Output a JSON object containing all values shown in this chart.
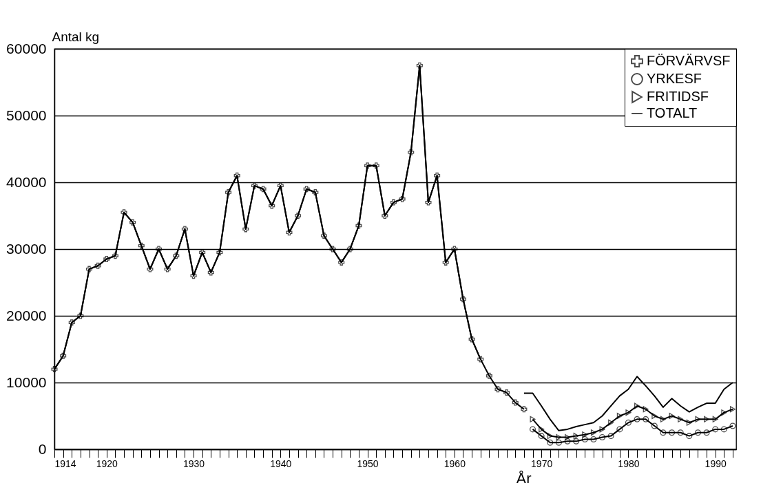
{
  "chart_data": {
    "type": "line",
    "xlabel": "År",
    "ylabel": "Antal kg",
    "x": [
      1914,
      1915,
      1916,
      1917,
      1918,
      1919,
      1920,
      1921,
      1922,
      1923,
      1924,
      1925,
      1926,
      1927,
      1928,
      1929,
      1930,
      1931,
      1932,
      1933,
      1934,
      1935,
      1936,
      1937,
      1938,
      1939,
      1940,
      1941,
      1942,
      1943,
      1944,
      1945,
      1946,
      1947,
      1948,
      1949,
      1950,
      1951,
      1952,
      1953,
      1954,
      1955,
      1956,
      1957,
      1958,
      1959,
      1960,
      1961,
      1962,
      1963,
      1964,
      1965,
      1966,
      1967,
      1968,
      1969,
      1970,
      1971,
      1972,
      1973,
      1974,
      1975,
      1976,
      1977,
      1978,
      1979,
      1980,
      1981,
      1982,
      1983,
      1984,
      1985,
      1986,
      1987,
      1988,
      1989,
      1990,
      1991,
      1992
    ],
    "series": [
      {
        "name": "FÖRVÄRVSF",
        "color": "#000000",
        "marker": "cross",
        "values": [
          12000,
          14000,
          19000,
          20000,
          27000,
          27500,
          28500,
          29000,
          35500,
          34000,
          30500,
          27000,
          30000,
          27000,
          29000,
          33000,
          26000,
          29500,
          26500,
          29500,
          38500,
          41000,
          33000,
          39500,
          39000,
          36500,
          39500,
          32500,
          35000,
          39000,
          38500,
          32000,
          30000,
          28000,
          30000,
          33500,
          42500,
          42500,
          35000,
          37000,
          37500,
          44500,
          57500,
          37000,
          41000,
          28000,
          30000,
          22500,
          16500,
          13500,
          11000,
          9000,
          8500,
          7000,
          6000,
          null,
          null,
          null,
          null,
          null,
          null,
          null,
          null,
          null,
          null,
          null,
          null,
          null,
          null,
          null,
          null,
          null,
          null,
          null,
          null,
          null,
          null,
          null,
          null
        ]
      },
      {
        "name": "YRKESF",
        "color": "#000000",
        "marker": "circle",
        "values": [
          null,
          null,
          null,
          null,
          null,
          null,
          null,
          null,
          null,
          null,
          null,
          null,
          null,
          null,
          null,
          null,
          null,
          null,
          null,
          null,
          null,
          null,
          null,
          null,
          null,
          null,
          null,
          null,
          null,
          null,
          null,
          null,
          null,
          null,
          null,
          null,
          null,
          null,
          null,
          null,
          null,
          null,
          null,
          null,
          null,
          null,
          null,
          null,
          null,
          null,
          null,
          null,
          null,
          null,
          null,
          3000,
          2000,
          1000,
          1000,
          1200,
          1200,
          1500,
          1500,
          1800,
          2000,
          3000,
          4000,
          4500,
          4500,
          3500,
          2500,
          2500,
          2500,
          2000,
          2500,
          2500,
          3000,
          3000,
          3500
        ]
      },
      {
        "name": "FRITIDSF",
        "color": "#000000",
        "marker": "triangle",
        "values": [
          null,
          null,
          null,
          null,
          null,
          null,
          null,
          null,
          null,
          null,
          null,
          null,
          null,
          null,
          null,
          null,
          null,
          null,
          null,
          null,
          null,
          null,
          null,
          null,
          null,
          null,
          null,
          null,
          null,
          null,
          null,
          null,
          null,
          null,
          null,
          null,
          null,
          null,
          null,
          null,
          null,
          null,
          null,
          null,
          null,
          null,
          null,
          null,
          null,
          null,
          null,
          null,
          null,
          null,
          null,
          4500,
          3000,
          2000,
          1800,
          1800,
          2000,
          2200,
          2500,
          3000,
          4000,
          5000,
          5500,
          6500,
          6000,
          5000,
          4500,
          5000,
          4500,
          4000,
          4500,
          4500,
          4500,
          5500,
          6000
        ]
      },
      {
        "name": "TOTALT",
        "color": "#000000",
        "marker": "none",
        "values": [
          12000,
          14000,
          19000,
          20000,
          27000,
          27500,
          28500,
          29000,
          35500,
          34000,
          30500,
          27000,
          30000,
          27000,
          29000,
          33000,
          26000,
          29500,
          26500,
          29500,
          38500,
          41000,
          33000,
          39500,
          39000,
          36500,
          39500,
          32500,
          35000,
          39000,
          38500,
          32000,
          30000,
          28000,
          30000,
          33500,
          42500,
          42500,
          35000,
          37000,
          37500,
          44500,
          57500,
          37000,
          41000,
          28000,
          30000,
          22500,
          16500,
          13500,
          null,
          null,
          null,
          null,
          8400,
          8400,
          6500,
          4500,
          2800,
          3000,
          3400,
          3700,
          4000,
          5000,
          6500,
          8000,
          9000,
          10900,
          9500,
          8000,
          6300,
          7600,
          6500,
          5600,
          6300,
          6900,
          6900,
          9000,
          10000
        ]
      }
    ],
    "xlim": [
      1914,
      1992.4
    ],
    "xticks": [
      1914,
      {
        "value": 1915,
        "label": null
      },
      {
        "value": 1916,
        "label": null
      },
      {
        "value": 1917,
        "label": null
      },
      {
        "value": 1918,
        "label": null
      },
      {
        "value": 1919,
        "label": null
      },
      1920,
      {
        "value": 1921,
        "label": null
      },
      {
        "value": 1922,
        "label": null
      },
      {
        "value": 1923,
        "label": null
      },
      {
        "value": 1924,
        "label": null
      },
      {
        "value": 1925,
        "label": null
      },
      {
        "value": 1926,
        "label": null
      },
      {
        "value": 1927,
        "label": null
      },
      {
        "value": 1928,
        "label": null
      },
      {
        "value": 1929,
        "label": null
      },
      1930,
      {
        "value": 1931,
        "label": null
      },
      {
        "value": 1932,
        "label": null
      },
      {
        "value": 1933,
        "label": null
      },
      {
        "value": 1934,
        "label": null
      },
      {
        "value": 1935,
        "label": null
      },
      {
        "value": 1936,
        "label": null
      },
      {
        "value": 1937,
        "label": null
      },
      {
        "value": 1938,
        "label": null
      },
      {
        "value": 1939,
        "label": null
      },
      1940,
      {
        "value": 1941,
        "label": null
      },
      {
        "value": 1942,
        "label": null
      },
      {
        "value": 1943,
        "label": null
      },
      {
        "value": 1944,
        "label": null
      },
      {
        "value": 1945,
        "label": null
      },
      {
        "value": 1946,
        "label": null
      },
      {
        "value": 1947,
        "label": null
      },
      {
        "value": 1948,
        "label": null
      },
      {
        "value": 1949,
        "label": null
      },
      1950,
      {
        "value": 1951,
        "label": null
      },
      {
        "value": 1952,
        "label": null
      },
      {
        "value": 1953,
        "label": null
      },
      {
        "value": 1954,
        "label": null
      },
      {
        "value": 1955,
        "label": null
      },
      {
        "value": 1956,
        "label": null
      },
      {
        "value": 1957,
        "label": null
      },
      {
        "value": 1958,
        "label": null
      },
      {
        "value": 1959,
        "label": null
      },
      1960,
      {
        "value": 1961,
        "label": null
      },
      {
        "value": 1962,
        "label": null
      },
      {
        "value": 1963,
        "label": null
      },
      {
        "value": 1964,
        "label": null
      },
      {
        "value": 1965,
        "label": null
      },
      {
        "value": 1966,
        "label": null
      },
      {
        "value": 1967,
        "label": null
      },
      {
        "value": 1968,
        "label": null
      },
      {
        "value": 1969,
        "label": null
      },
      1970,
      {
        "value": 1971,
        "label": null
      },
      {
        "value": 1972,
        "label": null
      },
      {
        "value": 1973,
        "label": null
      },
      {
        "value": 1974,
        "label": null
      },
      {
        "value": 1975,
        "label": null
      },
      {
        "value": 1976,
        "label": null
      },
      {
        "value": 1977,
        "label": null
      },
      {
        "value": 1978,
        "label": null
      },
      {
        "value": 1979,
        "label": null
      },
      1980,
      {
        "value": 1981,
        "label": null
      },
      {
        "value": 1982,
        "label": null
      },
      {
        "value": 1983,
        "label": null
      },
      {
        "value": 1984,
        "label": null
      },
      {
        "value": 1985,
        "label": null
      },
      {
        "value": 1986,
        "label": null
      },
      {
        "value": 1987,
        "label": null
      },
      {
        "value": 1988,
        "label": null
      },
      {
        "value": 1989,
        "label": null
      },
      1990,
      {
        "value": 1991,
        "label": null
      },
      {
        "value": 1992,
        "label": null
      }
    ],
    "ylim": [
      0,
      60000
    ],
    "yticks": [
      0,
      10000,
      20000,
      30000,
      40000,
      50000,
      60000
    ],
    "grid": "y",
    "legend": "top right"
  }
}
